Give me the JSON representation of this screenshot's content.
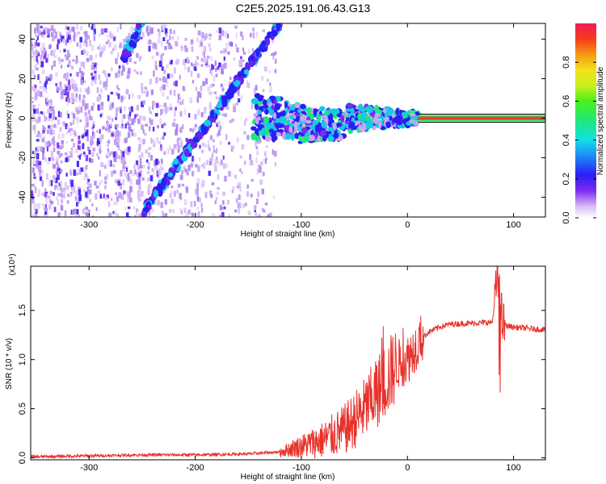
{
  "title": "C2E5.2025.191.06.43.G13",
  "chart_data": [
    {
      "type": "heatmap",
      "xlabel": "Height of straight line (km)",
      "ylabel": "Frequency (Hz)",
      "xlim": [
        -355,
        130
      ],
      "ylim": [
        -50,
        48
      ],
      "xticks": [
        -300,
        -200,
        -100,
        0,
        100
      ],
      "xtick_labels": [
        "-300",
        "-200",
        "-100",
        "0",
        "100"
      ],
      "yticks": [
        -40,
        -20,
        0,
        20,
        40
      ],
      "ytick_labels": [
        "-40",
        "-20",
        "0",
        "20",
        "40"
      ],
      "colorbar": {
        "label": "Normalized spectral amplitude",
        "range": [
          0,
          1
        ],
        "ticks": [
          0.0,
          0.2,
          0.4,
          0.6,
          0.8
        ],
        "tick_labels": [
          "0.0",
          "0.2",
          "0.4",
          "0.6",
          "0.8"
        ]
      },
      "features": [
        {
          "name": "diagonal-track-main",
          "x": [
            -250,
            -120
          ],
          "y": [
            -48,
            48
          ]
        },
        {
          "name": "diagonal-track-upper",
          "x": [
            -268,
            -250
          ],
          "y": [
            30,
            48
          ]
        },
        {
          "name": "carrier-line",
          "x": [
            10,
            130
          ],
          "y": [
            0,
            0
          ]
        }
      ]
    },
    {
      "type": "line",
      "xlabel": "Height of straight line (km)",
      "ylabel": "SNR (10 * v/v)",
      "y_multiplier": "(x10⁴)",
      "xlim": [
        -355,
        130
      ],
      "ylim": [
        -0.02,
        1.95
      ],
      "xticks": [
        -300,
        -200,
        -100,
        0,
        100
      ],
      "xtick_labels": [
        "-300",
        "-200",
        "-100",
        "0",
        "100"
      ],
      "yticks": [
        0.0,
        0.5,
        1.0,
        1.5
      ],
      "ytick_labels": [
        "0.0",
        "0.5",
        "1.0",
        "1.5"
      ],
      "series": [
        {
          "color": "#e8302a",
          "x": [
            -355,
            -300,
            -250,
            -200,
            -150,
            -120,
            -100,
            -80,
            -60,
            -50,
            -40,
            -30,
            -20,
            -10,
            0,
            10,
            20,
            30,
            40,
            60,
            80,
            85,
            88,
            90,
            100,
            110,
            120,
            130
          ],
          "y": [
            0.01,
            0.02,
            0.03,
            0.03,
            0.04,
            0.06,
            0.12,
            0.18,
            0.28,
            0.38,
            0.5,
            0.65,
            0.8,
            0.95,
            1.0,
            1.18,
            1.28,
            1.33,
            1.36,
            1.37,
            1.38,
            1.85,
            1.5,
            1.35,
            1.33,
            1.32,
            1.31,
            1.3
          ]
        }
      ]
    }
  ]
}
